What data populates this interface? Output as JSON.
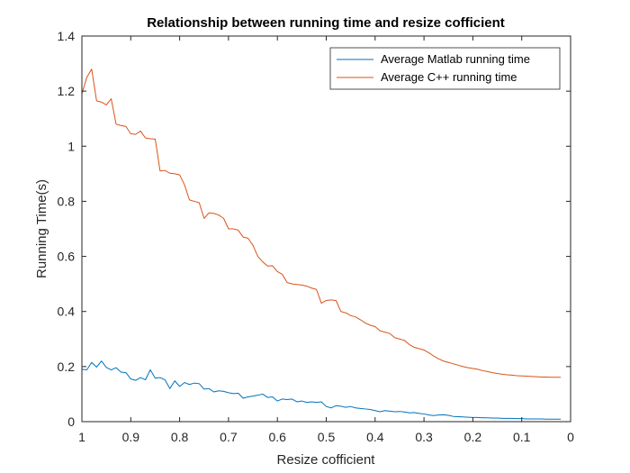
{
  "chart_data": {
    "type": "line",
    "title": "Relationship between running time and resize cofficient",
    "xlabel": "Resize cofficient",
    "ylabel": "Running Time(s)",
    "xlim": [
      1,
      0
    ],
    "x_reversed": true,
    "ylim": [
      0,
      1.4
    ],
    "xticks": [
      1,
      0.9,
      0.8,
      0.7,
      0.6,
      0.5,
      0.4,
      0.3,
      0.2,
      0.1,
      0
    ],
    "xtick_labels": [
      "1",
      "0.9",
      "0.8",
      "0.7",
      "0.6",
      "0.5",
      "0.4",
      "0.3",
      "0.2",
      "0.1",
      "0"
    ],
    "yticks": [
      0,
      0.2,
      0.4,
      0.6,
      0.8,
      1,
      1.2,
      1.4
    ],
    "ytick_labels": [
      "0",
      "0.2",
      "0.4",
      "0.6",
      "0.8",
      "1",
      "1.2",
      "1.4"
    ],
    "grid": false,
    "legend_position": "top-right",
    "series": [
      {
        "name": "Average Matlab running time",
        "color": "#0072BD",
        "x": [
          1,
          0.99,
          0.98,
          0.97,
          0.96,
          0.95,
          0.94,
          0.93,
          0.92,
          0.91,
          0.9,
          0.89,
          0.88,
          0.87,
          0.86,
          0.85,
          0.84,
          0.83,
          0.82,
          0.81,
          0.8,
          0.79,
          0.78,
          0.77,
          0.76,
          0.75,
          0.74,
          0.73,
          0.72,
          0.71,
          0.7,
          0.69,
          0.68,
          0.67,
          0.66,
          0.65,
          0.64,
          0.63,
          0.62,
          0.61,
          0.6,
          0.59,
          0.58,
          0.57,
          0.56,
          0.55,
          0.54,
          0.53,
          0.52,
          0.51,
          0.5,
          0.49,
          0.48,
          0.47,
          0.46,
          0.45,
          0.44,
          0.43,
          0.42,
          0.41,
          0.4,
          0.39,
          0.38,
          0.37,
          0.36,
          0.35,
          0.34,
          0.33,
          0.32,
          0.31,
          0.3,
          0.29,
          0.28,
          0.27,
          0.26,
          0.25,
          0.24,
          0.23,
          0.22,
          0.21,
          0.2,
          0.19,
          0.18,
          0.17,
          0.16,
          0.15,
          0.14,
          0.13,
          0.12,
          0.11,
          0.1,
          0.09,
          0.08,
          0.07,
          0.06,
          0.05,
          0.04,
          0.03,
          0.02
        ],
        "y": [
          0.19,
          0.188,
          0.215,
          0.198,
          0.22,
          0.197,
          0.188,
          0.196,
          0.18,
          0.178,
          0.155,
          0.15,
          0.16,
          0.152,
          0.188,
          0.158,
          0.16,
          0.152,
          0.12,
          0.148,
          0.128,
          0.142,
          0.135,
          0.14,
          0.138,
          0.118,
          0.12,
          0.108,
          0.112,
          0.11,
          0.105,
          0.102,
          0.103,
          0.085,
          0.09,
          0.093,
          0.096,
          0.1,
          0.088,
          0.09,
          0.075,
          0.082,
          0.08,
          0.082,
          0.072,
          0.075,
          0.07,
          0.072,
          0.07,
          0.072,
          0.055,
          0.05,
          0.058,
          0.056,
          0.052,
          0.055,
          0.05,
          0.048,
          0.046,
          0.044,
          0.04,
          0.036,
          0.04,
          0.038,
          0.036,
          0.037,
          0.035,
          0.032,
          0.033,
          0.03,
          0.028,
          0.024,
          0.022,
          0.024,
          0.025,
          0.023,
          0.019,
          0.018,
          0.017,
          0.016,
          0.015,
          0.015,
          0.014,
          0.014,
          0.013,
          0.013,
          0.012,
          0.012,
          0.012,
          0.011,
          0.011,
          0.01,
          0.01,
          0.01,
          0.01,
          0.009,
          0.009,
          0.009,
          0.009
        ]
      },
      {
        "name": "Average C++ running time",
        "color": "#D95319",
        "x": [
          1,
          0.99,
          0.98,
          0.97,
          0.96,
          0.95,
          0.94,
          0.93,
          0.92,
          0.91,
          0.9,
          0.89,
          0.88,
          0.87,
          0.86,
          0.85,
          0.84,
          0.83,
          0.82,
          0.81,
          0.8,
          0.79,
          0.78,
          0.77,
          0.76,
          0.75,
          0.74,
          0.73,
          0.72,
          0.71,
          0.7,
          0.69,
          0.68,
          0.67,
          0.66,
          0.65,
          0.64,
          0.63,
          0.62,
          0.61,
          0.6,
          0.59,
          0.58,
          0.57,
          0.56,
          0.55,
          0.54,
          0.53,
          0.52,
          0.51,
          0.5,
          0.49,
          0.48,
          0.47,
          0.46,
          0.45,
          0.44,
          0.43,
          0.42,
          0.41,
          0.4,
          0.39,
          0.38,
          0.37,
          0.36,
          0.35,
          0.34,
          0.33,
          0.32,
          0.31,
          0.3,
          0.29,
          0.28,
          0.27,
          0.26,
          0.25,
          0.24,
          0.23,
          0.22,
          0.21,
          0.2,
          0.19,
          0.18,
          0.17,
          0.16,
          0.15,
          0.14,
          0.13,
          0.12,
          0.11,
          0.1,
          0.09,
          0.08,
          0.07,
          0.06,
          0.05,
          0.04,
          0.03,
          0.02
        ],
        "y": [
          1.19,
          1.25,
          1.28,
          1.165,
          1.16,
          1.15,
          1.172,
          1.08,
          1.075,
          1.072,
          1.045,
          1.043,
          1.055,
          1.03,
          1.027,
          1.026,
          0.91,
          0.912,
          0.902,
          0.9,
          0.896,
          0.86,
          0.805,
          0.8,
          0.795,
          0.738,
          0.758,
          0.756,
          0.75,
          0.738,
          0.7,
          0.7,
          0.695,
          0.67,
          0.666,
          0.64,
          0.6,
          0.58,
          0.565,
          0.566,
          0.545,
          0.535,
          0.505,
          0.5,
          0.498,
          0.496,
          0.492,
          0.485,
          0.48,
          0.43,
          0.44,
          0.442,
          0.44,
          0.4,
          0.395,
          0.385,
          0.38,
          0.37,
          0.358,
          0.35,
          0.345,
          0.33,
          0.325,
          0.32,
          0.305,
          0.3,
          0.295,
          0.28,
          0.27,
          0.265,
          0.26,
          0.25,
          0.238,
          0.228,
          0.22,
          0.215,
          0.21,
          0.205,
          0.2,
          0.196,
          0.193,
          0.19,
          0.185,
          0.182,
          0.178,
          0.175,
          0.172,
          0.17,
          0.169,
          0.167,
          0.166,
          0.165,
          0.164,
          0.163,
          0.162,
          0.162,
          0.161,
          0.161,
          0.161
        ]
      }
    ]
  }
}
